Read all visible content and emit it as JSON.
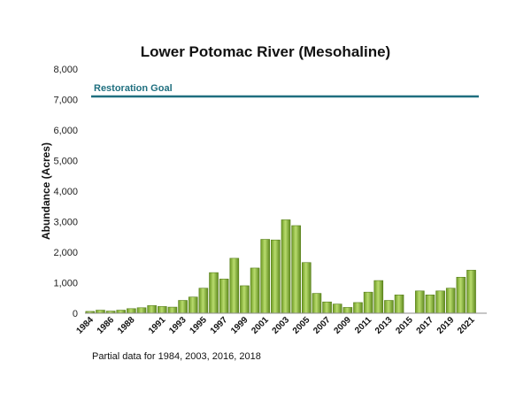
{
  "chart_data": {
    "type": "bar",
    "title": "Lower Potomac River (Mesohaline)",
    "xlabel": "",
    "ylabel": "Abundance (Acres)",
    "ylim": [
      0,
      8000
    ],
    "yticks": [
      "0",
      "1,000",
      "2,000",
      "3,000",
      "4,000",
      "5,000",
      "6,000",
      "7,000",
      "8,000"
    ],
    "categories": [
      "1984",
      "1985",
      "1986",
      "1987",
      "1988",
      "1989",
      "1990",
      "1991",
      "1992",
      "1993",
      "1994",
      "1995",
      "1996",
      "1997",
      "1998",
      "1999",
      "2000",
      "2001",
      "2002",
      "2003",
      "2004",
      "2005",
      "2006",
      "2007",
      "2008",
      "2009",
      "2010",
      "2011",
      "2012",
      "2013",
      "2014",
      "2015",
      "2016",
      "2017",
      "2018",
      "2019",
      "2020",
      "2021",
      "2022"
    ],
    "x_tick_labels": [
      "1984",
      "1986",
      "1988",
      "1991",
      "1993",
      "1995",
      "1997",
      "1999",
      "2001",
      "2003",
      "2005",
      "2007",
      "2009",
      "2011",
      "2013",
      "2015",
      "2017",
      "2019",
      "2021"
    ],
    "series": [
      {
        "values": [
          60,
          100,
          70,
          100,
          150,
          180,
          250,
          220,
          200,
          420,
          530,
          820,
          1330,
          1120,
          1800,
          900,
          1480,
          2420,
          2400,
          3060,
          2870,
          1660,
          650,
          370,
          300,
          190,
          350,
          690,
          1070,
          420,
          600,
          0,
          730,
          600,
          730,
          820,
          1180,
          1410,
          0
        ]
      }
    ],
    "goal": {
      "label": "Restoration Goal",
      "value": 7100,
      "color": "#1f6f7f"
    },
    "grid": false,
    "legend": "none",
    "bar_color": "#8cbf3a",
    "note": "Partial data for 1984, 2003, 2016, 2018"
  }
}
